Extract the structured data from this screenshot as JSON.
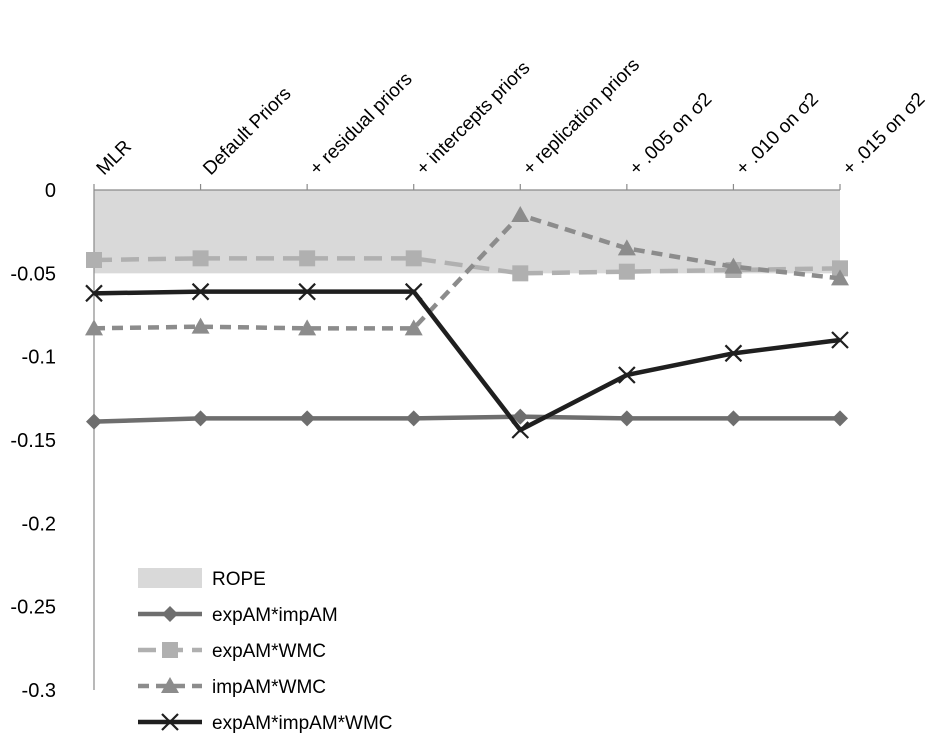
{
  "chart_data": {
    "type": "line",
    "categories": [
      "MLR",
      "Default Priors",
      "+ residual priors",
      "+ intercepts priors",
      "+ replication priors",
      "+ .005 on σ2",
      "+ .010 on σ2",
      "+ .015 on σ2"
    ],
    "ylim": [
      -0.3,
      0
    ],
    "yticks": [
      "0",
      "-0.05",
      "-0.1",
      "-0.15",
      "-0.2",
      "-0.25",
      "-0.3"
    ],
    "ytick_values": [
      0,
      -0.05,
      -0.1,
      -0.15,
      -0.2,
      -0.25,
      -0.3
    ],
    "rope": {
      "name": "ROPE",
      "from": -0.05,
      "to": 0,
      "color": "#d9d9d9"
    },
    "series": [
      {
        "name": "expAM*impAM",
        "marker": "diamond",
        "dash": "solid",
        "color": "#6e6e6e",
        "values": [
          -0.139,
          -0.137,
          -0.137,
          -0.137,
          -0.136,
          -0.137,
          -0.137,
          -0.137
        ]
      },
      {
        "name": "expAM*WMC",
        "marker": "square",
        "dash": "long-dash",
        "color": "#b0b0b0",
        "values": [
          -0.042,
          -0.041,
          -0.041,
          -0.041,
          -0.05,
          -0.049,
          -0.048,
          -0.047
        ]
      },
      {
        "name": "impAM*WMC",
        "marker": "triangle",
        "dash": "dash",
        "color": "#8c8c8c",
        "values": [
          -0.083,
          -0.082,
          -0.083,
          -0.083,
          -0.015,
          -0.035,
          -0.046,
          -0.053
        ]
      },
      {
        "name": "expAM*impAM*WMC",
        "marker": "x",
        "dash": "solid",
        "color": "#1f1f1f",
        "values": [
          -0.062,
          -0.061,
          -0.061,
          -0.061,
          -0.144,
          -0.111,
          -0.098,
          -0.09
        ]
      }
    ],
    "legend": "bottom-left",
    "grid": false
  }
}
